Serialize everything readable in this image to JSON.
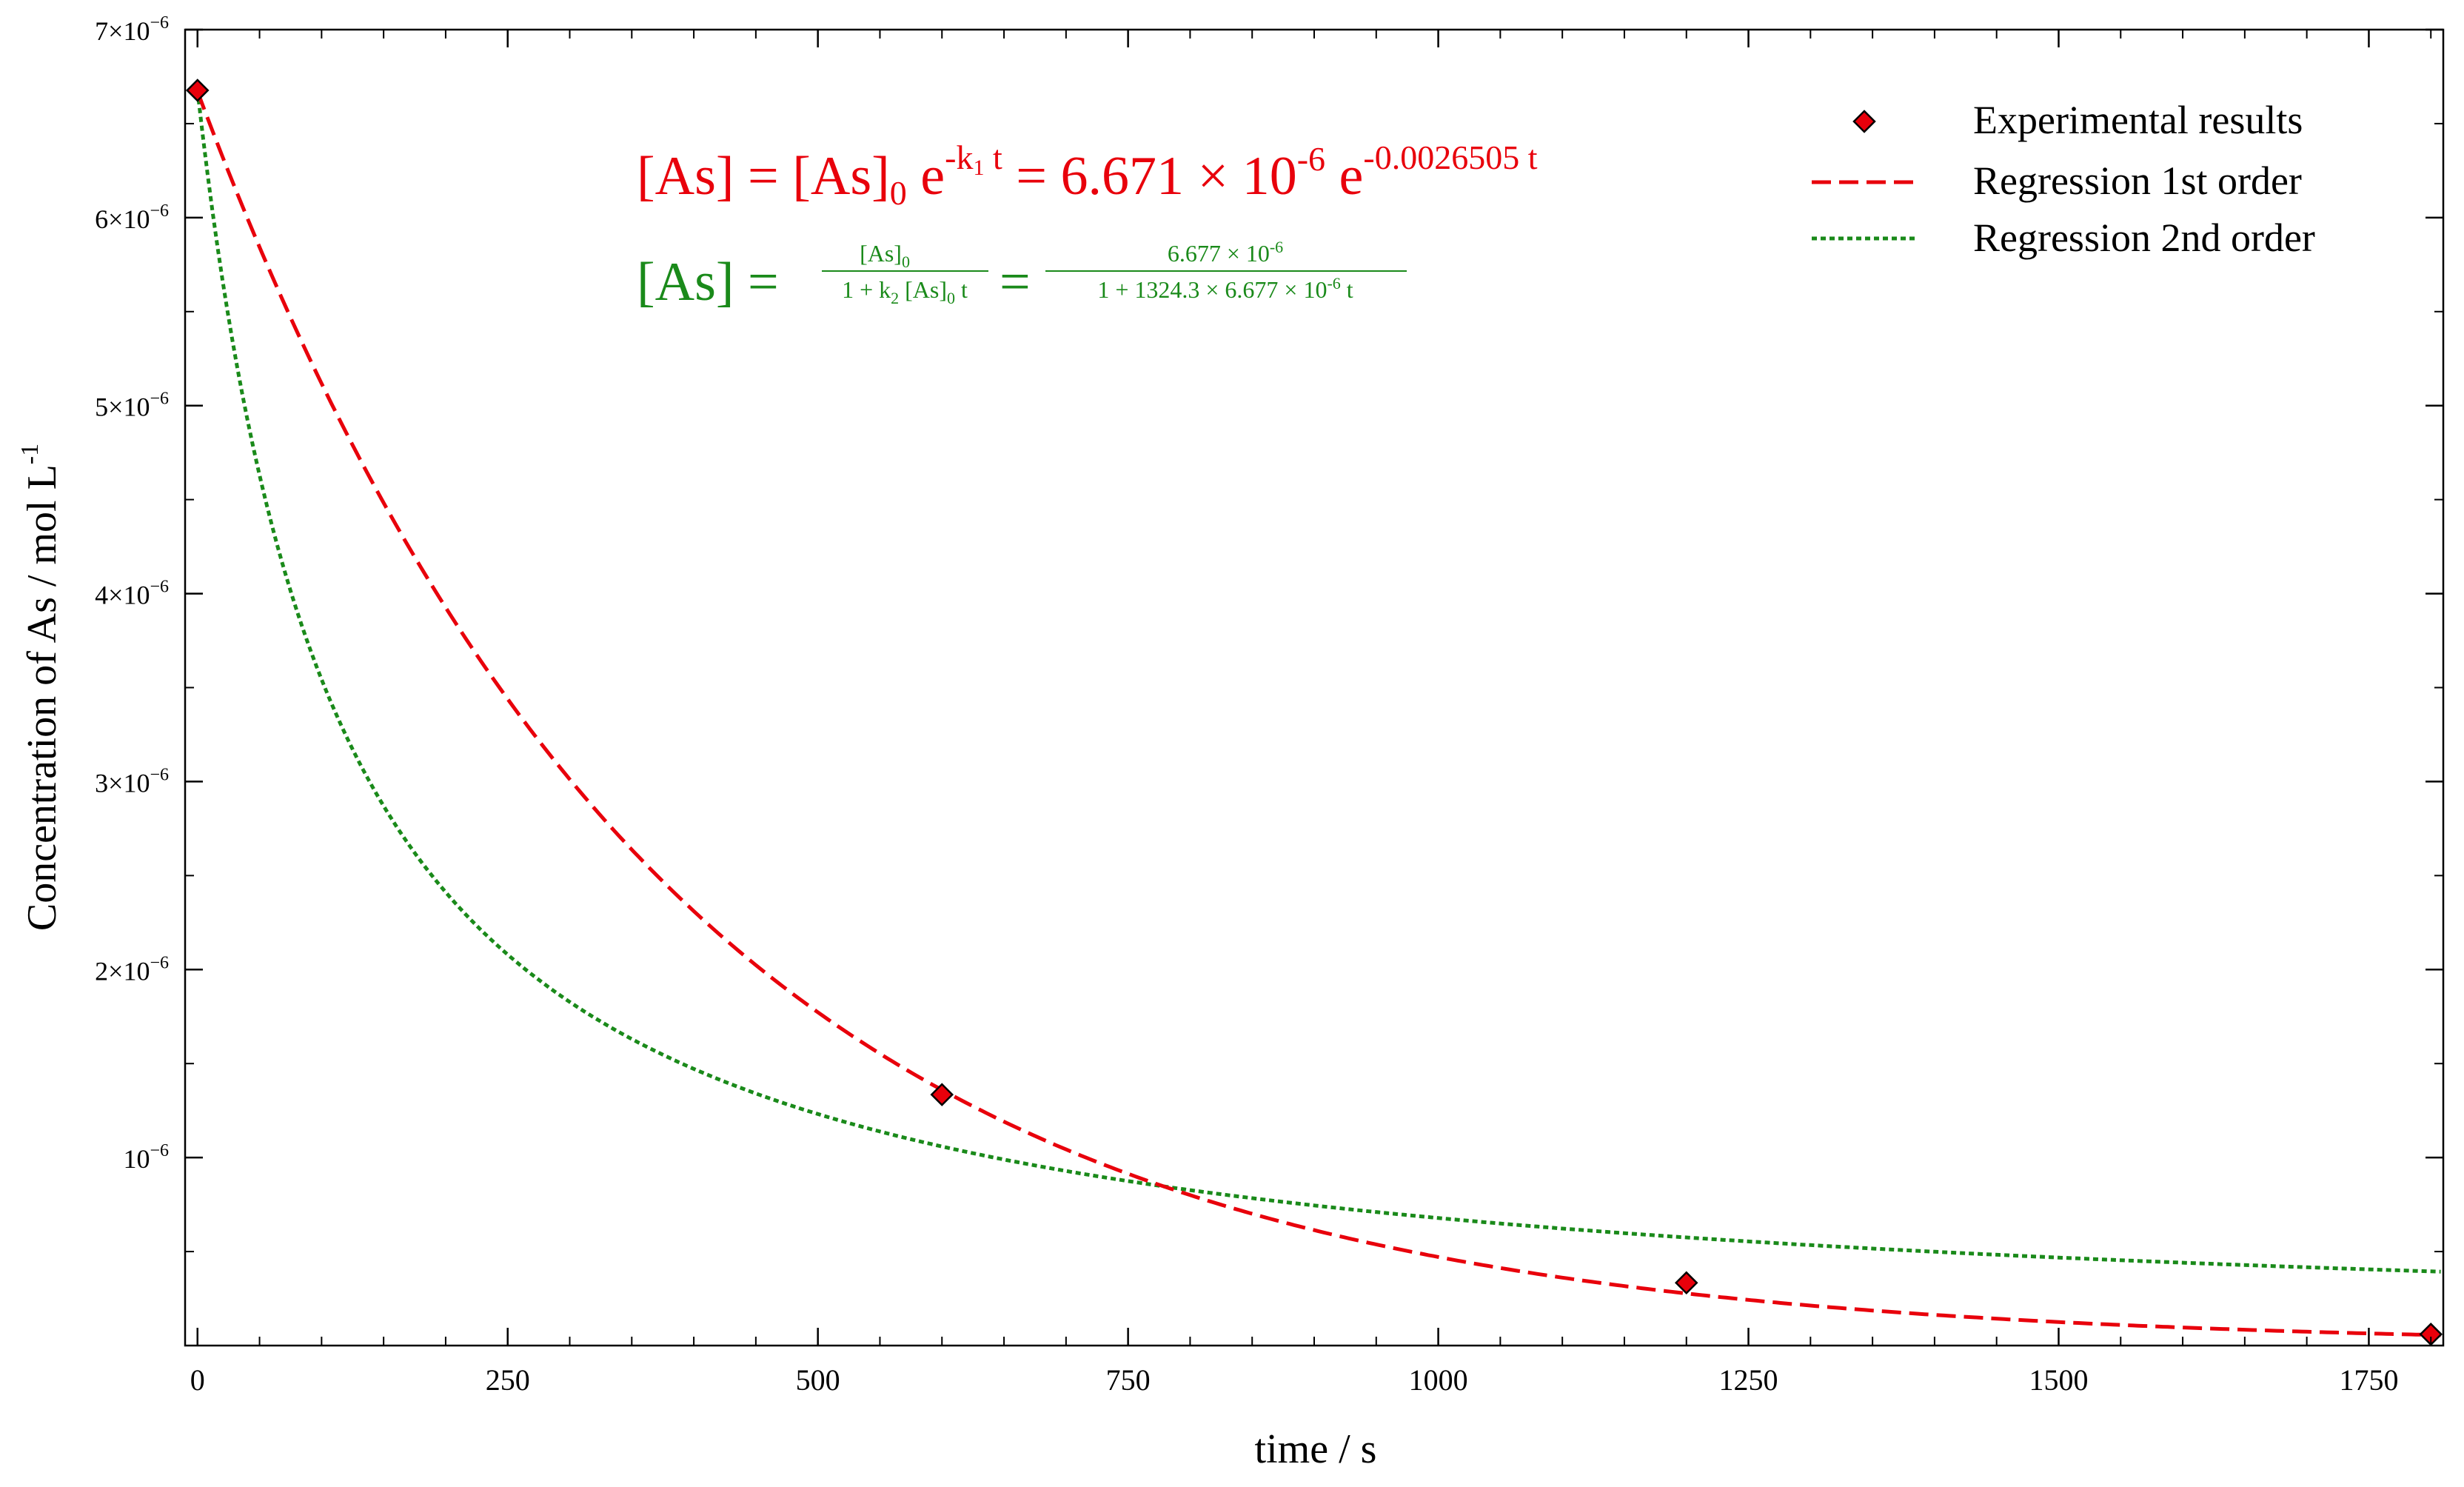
{
  "chart_data": {
    "type": "line",
    "xlabel": "time / s",
    "ylabel": "Concentration of As / mol L",
    "ylabel_sup": "-1",
    "xlim": [
      -10,
      1810
    ],
    "ylim": [
      0.0,
      7e-06
    ],
    "x_ticks": [
      0,
      250,
      500,
      750,
      1000,
      1250,
      1500,
      1750
    ],
    "y_ticks": [
      {
        "value": 1e-06,
        "mantissa": "",
        "exponent": "−6"
      },
      {
        "value": 2e-06,
        "mantissa": "2×",
        "exponent": "−6"
      },
      {
        "value": 3e-06,
        "mantissa": "3×",
        "exponent": "−6"
      },
      {
        "value": 4e-06,
        "mantissa": "4×",
        "exponent": "−6"
      },
      {
        "value": 5e-06,
        "mantissa": "5×",
        "exponent": "−6"
      },
      {
        "value": 6e-06,
        "mantissa": "6×",
        "exponent": "−6"
      },
      {
        "value": 7e-06,
        "mantissa": "7×",
        "exponent": "−6"
      }
    ],
    "grid": false,
    "legend_position": "top-right",
    "series": [
      {
        "name": "Experimental results",
        "kind": "scatter",
        "marker": "diamond",
        "color": "#e8000b",
        "x": [
          0,
          600,
          1200,
          1800
        ],
        "y": [
          6.677e-06,
          1.335e-06,
          3.34e-07,
          6e-08
        ]
      },
      {
        "name": "Regression 1st order",
        "kind": "line",
        "style": "dashed",
        "color": "#e8000b",
        "model": "first_order",
        "a0": 6.671e-06,
        "k": 0.0026505
      },
      {
        "name": "Regression 2nd order",
        "kind": "line",
        "style": "dotted",
        "color": "#1a8a1a",
        "model": "second_order",
        "a0": 6.677e-06,
        "k": 1324.3
      }
    ],
    "annotations": {
      "eq1": {
        "color": "#e8000b",
        "lhs": "[As] = [As]",
        "sub0": "0",
        "e_text": " e",
        "exp1_a": "-k",
        "exp1_sub": "1",
        "exp1_b": " t",
        "mid": " = 6.671 × 10",
        "mid_exp": "-6",
        "e2": "  e",
        "exp2": "-0.0026505 t"
      },
      "eq2": {
        "color": "#1a8a1a",
        "lhs": "[As] =",
        "frac1_num": "[As]",
        "frac1_num_sub": "0",
        "frac1_den_a": "1 + k",
        "frac1_den_sub": "2",
        "frac1_den_b": " [As]",
        "frac1_den_sub2": "0",
        "frac1_den_c": " t",
        "equals": "=",
        "frac2_num": "6.677 × 10",
        "frac2_num_exp": "-6",
        "frac2_den": "1 + 1324.3 × 6.677 × 10",
        "frac2_den_exp": "-6",
        "frac2_den_c": " t"
      }
    }
  }
}
